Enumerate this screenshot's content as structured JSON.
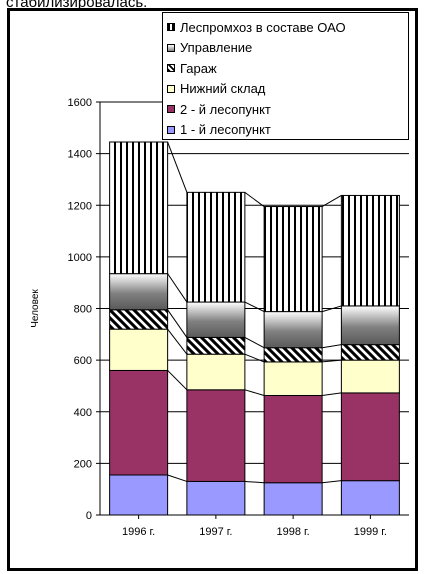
{
  "page": {
    "top_text": "стабилизировалась."
  },
  "chart_data": {
    "type": "bar",
    "stacked": true,
    "categories": [
      "1996 г.",
      "1997 г.",
      "1998 г.",
      "1999 г."
    ],
    "ylabel": "Человек",
    "ylim": [
      0,
      1600
    ],
    "yticks": [
      "0",
      "200",
      "400",
      "600",
      "800",
      "1000",
      "1200",
      "1400",
      "1600"
    ],
    "grid": true,
    "legend_position": "top-right",
    "series": [
      {
        "name": "1 - й лесопункт",
        "values": [
          155,
          130,
          125,
          133
        ],
        "color": "#9999ff"
      },
      {
        "name": "2 - й лесопункт",
        "values": [
          405,
          355,
          338,
          340
        ],
        "color": "#993366"
      },
      {
        "name": "Нижний склад",
        "values": [
          160,
          138,
          130,
          127
        ],
        "color": "#ffffcc"
      },
      {
        "name": "Гараж",
        "values": [
          75,
          65,
          55,
          60
        ],
        "color": "#ffffff",
        "pattern": "diagonal"
      },
      {
        "name": "Управление",
        "values": [
          140,
          137,
          140,
          150
        ],
        "color": "#808080",
        "pattern": "gradient"
      },
      {
        "name": "Леспромхоз в составе ОАО",
        "values": [
          510,
          425,
          407,
          428
        ],
        "color": "#ffffff",
        "pattern": "vertical"
      }
    ]
  }
}
